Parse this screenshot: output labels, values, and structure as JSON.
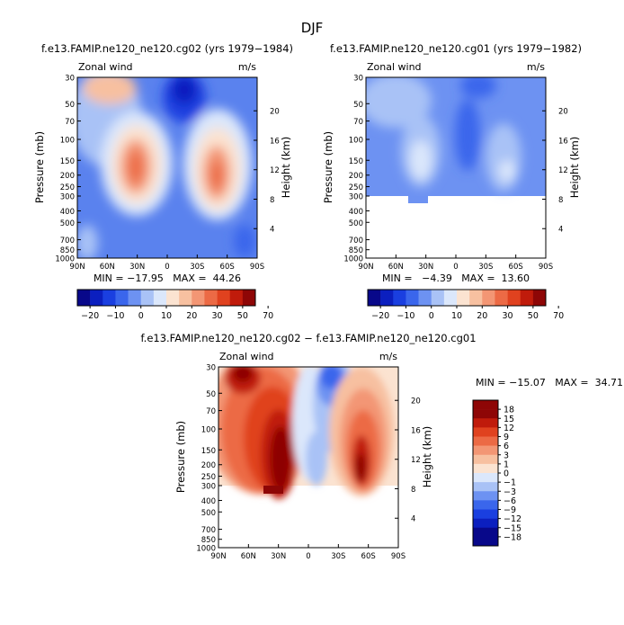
{
  "figure": {
    "title": "DJF"
  },
  "chart_data": [
    {
      "type": "heatmap",
      "panel": "top-left",
      "title": "f.e13.FAMIP.ne120_ne120.cg02 (yrs 1979−1984)",
      "left_label": "Zonal wind",
      "right_label": "m/s",
      "ylabel": "Pressure (mb)",
      "ylabel_right": "Height (km)",
      "x_ticks": [
        "90N",
        "60N",
        "30N",
        "0",
        "30S",
        "60S",
        "90S"
      ],
      "y_ticks": [
        "30",
        "50",
        "70",
        "100",
        "150",
        "200",
        "250",
        "300",
        "400",
        "500",
        "700",
        "850",
        "1000"
      ],
      "height_ticks": [
        "20",
        "16",
        "12",
        "8",
        "4"
      ],
      "xlim": [
        90,
        -90
      ],
      "ylim": [
        1000,
        30
      ],
      "stats_text": "MIN = −17.95   MAX =  44.26",
      "min": -17.95,
      "max": 44.26,
      "colorbar_levels": [
        "−20",
        "−10",
        "0",
        "10",
        "20",
        "30",
        "50",
        "70"
      ]
    },
    {
      "type": "heatmap",
      "panel": "top-right",
      "title": "f.e13.FAMIP.ne120_ne120.cg01 (yrs 1979−1982)",
      "left_label": "Zonal wind",
      "right_label": "m/s",
      "ylabel": "Pressure (mb)",
      "ylabel_right": "Height (km)",
      "x_ticks": [
        "90N",
        "60N",
        "30N",
        "0",
        "30S",
        "60S",
        "90S"
      ],
      "y_ticks": [
        "30",
        "50",
        "70",
        "100",
        "150",
        "200",
        "250",
        "300",
        "400",
        "500",
        "700",
        "850",
        "1000"
      ],
      "height_ticks": [
        "20",
        "16",
        "12",
        "8",
        "4"
      ],
      "xlim": [
        90,
        -90
      ],
      "ylim": [
        1000,
        30
      ],
      "stats_text": "MIN =   −4.39   MAX =  13.60",
      "min": -4.39,
      "max": 13.6,
      "colorbar_levels": [
        "−20",
        "−10",
        "0",
        "10",
        "20",
        "30",
        "50",
        "70"
      ]
    },
    {
      "type": "heatmap",
      "panel": "bottom",
      "title": "f.e13.FAMIP.ne120_ne120.cg02 − f.e13.FAMIP.ne120_ne120.cg01",
      "left_label": "Zonal wind",
      "right_label": "m/s",
      "ylabel": "Pressure (mb)",
      "ylabel_right": "Height (km)",
      "x_ticks": [
        "90N",
        "60N",
        "30N",
        "0",
        "30S",
        "60S",
        "90S"
      ],
      "y_ticks": [
        "30",
        "50",
        "70",
        "100",
        "150",
        "200",
        "250",
        "300",
        "400",
        "500",
        "700",
        "850",
        "1000"
      ],
      "height_ticks": [
        "20",
        "16",
        "12",
        "8",
        "4"
      ],
      "xlim": [
        90,
        -90
      ],
      "ylim": [
        1000,
        30
      ],
      "stats_text": "MIN = −15.07   MAX =  34.71",
      "min": -15.07,
      "max": 34.71,
      "colorbar_levels": [
        "18",
        "15",
        "12",
        "9",
        "6",
        "3",
        "1",
        "0",
        "−1",
        "−3",
        "−6",
        "−9",
        "−12",
        "−15",
        "−18"
      ]
    }
  ],
  "colors": {
    "scale": [
      "#08088a",
      "#0b1fbf",
      "#1a3fe0",
      "#3a66ec",
      "#6d92f2",
      "#a9c2f6",
      "#dbe7fb",
      "#fbe3d1",
      "#f7c0a0",
      "#f39674",
      "#ec6a45",
      "#e0421f",
      "#c01b0b",
      "#8e0606"
    ]
  }
}
